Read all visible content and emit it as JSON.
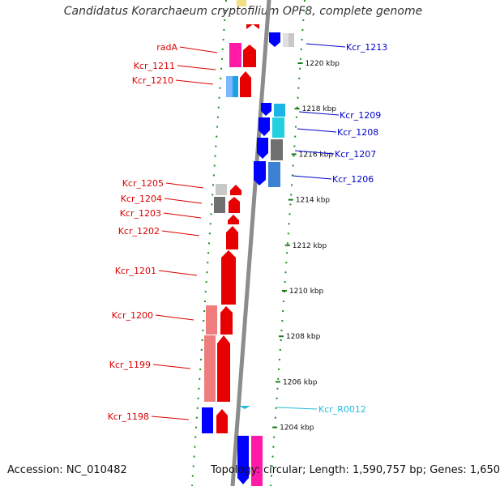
{
  "title": "Candidatus Korarchaeum cryptofilium OPF8, complete genome",
  "footer": {
    "accession": "Accession: NC_010482",
    "topology": "Topology: circular; Length: 1,590,757 bp; Genes: 1,650"
  },
  "colors": {
    "backbone": "#8c8c8c",
    "dots": "#1e8c1e",
    "tick": "#1a7a1a",
    "forward_label": "#dd0000",
    "reverse_label": "#0000cc",
    "rna_label": "#22bbdd"
  },
  "diagram": {
    "ruler": [
      {
        "label": "1220 kbp",
        "kbp": 1220
      },
      {
        "label": "1218 kbp",
        "kbp": 1218
      },
      {
        "label": "1216 kbp",
        "kbp": 1216
      },
      {
        "label": "1214 kbp",
        "kbp": 1214
      },
      {
        "label": "1212 kbp",
        "kbp": 1212
      },
      {
        "label": "1210 kbp",
        "kbp": 1210
      },
      {
        "label": "1208 kbp",
        "kbp": 1208
      },
      {
        "label": "1206 kbp",
        "kbp": 1206
      },
      {
        "label": "1204 kbp",
        "kbp": 1204
      }
    ],
    "forward_labels": [
      "radA",
      "Kcr_1211",
      "Kcr_1210",
      "Kcr_1205",
      "Kcr_1204",
      "Kcr_1203",
      "Kcr_1202",
      "Kcr_1201",
      "Kcr_1200",
      "Kcr_1199",
      "Kcr_1198"
    ],
    "reverse_labels": [
      "Kcr_1213",
      "Kcr_1209",
      "Kcr_1208",
      "Kcr_1207",
      "Kcr_1206"
    ],
    "rna_labels": [
      "Kcr_R0012"
    ]
  }
}
